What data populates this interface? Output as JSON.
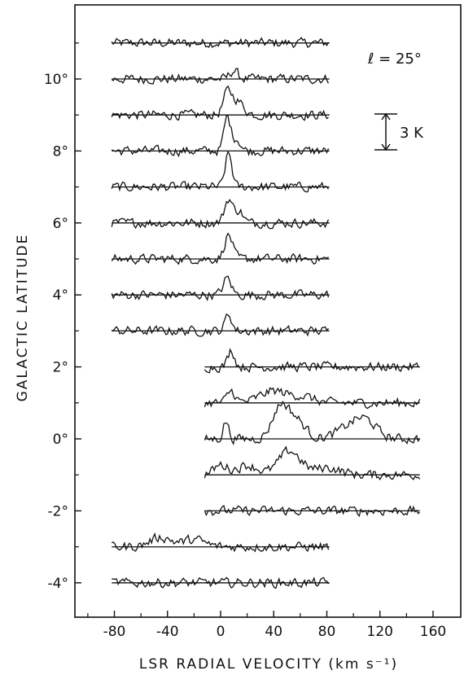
{
  "chart_data": {
    "type": "line",
    "title": "",
    "xlabel": "LSR RADIAL VELOCITY (km s⁻¹)",
    "ylabel": "GALACTIC LATITUDE",
    "xlim": [
      -110,
      170
    ],
    "ylim": [
      -5,
      11.9
    ],
    "x_ticks": [
      -80,
      -40,
      0,
      40,
      80,
      120,
      160
    ],
    "x_tick_labels": [
      "-80",
      "-40",
      "0",
      "40",
      "80",
      "120",
      "160"
    ],
    "y_ticks": [
      -4,
      -2,
      0,
      2,
      4,
      6,
      8,
      10
    ],
    "y_tick_labels": [
      "-4°",
      "-2°",
      "0°",
      "2°",
      "4°",
      "6°",
      "8°",
      "10°"
    ],
    "annotations": {
      "longitude": "ℓ = 25°",
      "scale_bar_label": "3 K",
      "scale_bar_kelvin": 3
    },
    "spectrum_range": {
      "left_group": [
        -82,
        82
      ],
      "right_group": [
        -12,
        150
      ]
    },
    "series": [
      {
        "latitude": 11,
        "vmin": -82,
        "vmax": 82,
        "peaks": []
      },
      {
        "latitude": 10,
        "vmin": -82,
        "vmax": 82,
        "peaks": [
          [
            10,
            0.7,
            3
          ]
        ]
      },
      {
        "latitude": 9,
        "vmin": -82,
        "vmax": 82,
        "peaks": [
          [
            5,
            1.6,
            3
          ],
          [
            12,
            1.2,
            5
          ]
        ]
      },
      {
        "latitude": 8,
        "vmin": -82,
        "vmax": 82,
        "peaks": [
          [
            5,
            2.8,
            2.5
          ],
          [
            12,
            1.0,
            3
          ]
        ]
      },
      {
        "latitude": 7,
        "vmin": -82,
        "vmax": 82,
        "peaks": [
          [
            6,
            2.8,
            2.5
          ]
        ]
      },
      {
        "latitude": 6,
        "vmin": -82,
        "vmax": 82,
        "peaks": [
          [
            6,
            2.0,
            3
          ],
          [
            14,
            1.0,
            3
          ]
        ]
      },
      {
        "latitude": 5,
        "vmin": -82,
        "vmax": 82,
        "peaks": [
          [
            6,
            2.0,
            3
          ]
        ]
      },
      {
        "latitude": 4,
        "vmin": -82,
        "vmax": 82,
        "peaks": [
          [
            5,
            1.4,
            3
          ]
        ]
      },
      {
        "latitude": 3,
        "vmin": -82,
        "vmax": 82,
        "peaks": [
          [
            6,
            1.4,
            2.5
          ]
        ]
      },
      {
        "latitude": 2,
        "vmin": -12,
        "vmax": 150,
        "peaks": [
          [
            8,
            1.4,
            2.5
          ]
        ]
      },
      {
        "latitude": 1,
        "vmin": -12,
        "vmax": 150,
        "peaks": [
          [
            8,
            1.0,
            3
          ],
          [
            40,
            1.0,
            10
          ],
          [
            62,
            0.5,
            8
          ]
        ]
      },
      {
        "latitude": 0,
        "vmin": -12,
        "vmax": 150,
        "peaks": [
          [
            4,
            1.5,
            2
          ],
          [
            45,
            2.6,
            6
          ],
          [
            57,
            1.5,
            7
          ],
          [
            98,
            1.0,
            10
          ],
          [
            110,
            1.2,
            8
          ]
        ]
      },
      {
        "latitude": -1,
        "vmin": -12,
        "vmax": 150,
        "peaks": [
          [
            0,
            0.8,
            5
          ],
          [
            20,
            0.8,
            8
          ],
          [
            52,
            2.0,
            8
          ],
          [
            80,
            0.6,
            10
          ]
        ]
      },
      {
        "latitude": -2,
        "vmin": -12,
        "vmax": 150,
        "peaks": []
      },
      {
        "latitude": -3,
        "vmin": -82,
        "vmax": 82,
        "peaks": [
          [
            -45,
            0.8,
            8
          ],
          [
            -20,
            0.6,
            8
          ]
        ]
      },
      {
        "latitude": -4,
        "vmin": -82,
        "vmax": 82,
        "peaks": []
      }
    ]
  }
}
